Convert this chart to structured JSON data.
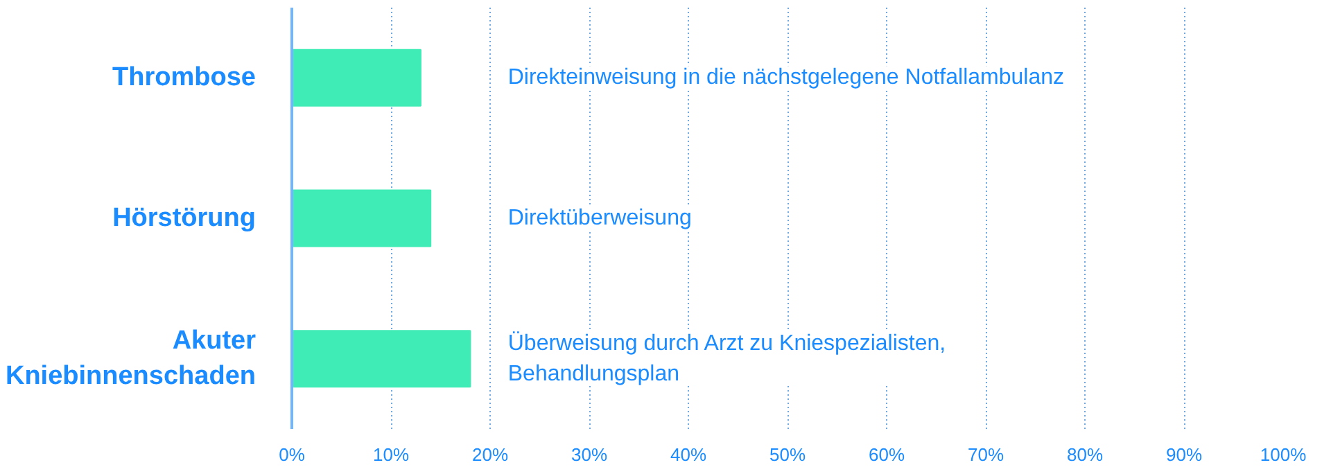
{
  "chart_data": {
    "type": "bar",
    "orientation": "horizontal",
    "categories": [
      "Thrombose",
      "Hörstörung",
      "Akuter\nKniebinnenschaden"
    ],
    "values": [
      13,
      14,
      18
    ],
    "color": "#40ecb5",
    "xlim": [
      0,
      100
    ],
    "xticks": [
      {
        "value": 0,
        "label": "0%"
      },
      {
        "value": 10,
        "label": "10%"
      },
      {
        "value": 20,
        "label": "20%"
      },
      {
        "value": 30,
        "label": "30%"
      },
      {
        "value": 40,
        "label": "40%"
      },
      {
        "value": 50,
        "label": "50%"
      },
      {
        "value": 60,
        "label": "60%"
      },
      {
        "value": 70,
        "label": "70%"
      },
      {
        "value": 80,
        "label": "80%"
      },
      {
        "value": 90,
        "label": "90%"
      },
      {
        "value": 100,
        "label": "100%"
      }
    ],
    "grid": "x",
    "annotations": [
      "Direkteinweisung in die nächstgelegene Notfallambulanz",
      "Direktüberweisung",
      "Überweisung durch Arzt zu Kniespezialisten,\nBehandlungsplan"
    ]
  }
}
